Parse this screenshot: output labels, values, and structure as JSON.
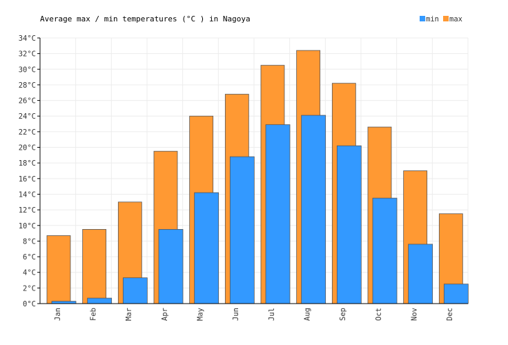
{
  "chart_data": {
    "type": "bar",
    "title": "Average max / min temperatures (°C ) in Nagoya",
    "categories": [
      "Jan",
      "Feb",
      "Mar",
      "Apr",
      "May",
      "Jun",
      "Jul",
      "Aug",
      "Sep",
      "Oct",
      "Nov",
      "Dec"
    ],
    "series": [
      {
        "name": "max",
        "color": "#ff9933",
        "values": [
          8.7,
          9.5,
          13.0,
          19.5,
          24.0,
          26.8,
          30.5,
          32.4,
          28.2,
          22.6,
          17.0,
          11.5
        ]
      },
      {
        "name": "min",
        "color": "#3399ff",
        "values": [
          0.3,
          0.7,
          3.3,
          9.5,
          14.2,
          18.8,
          22.9,
          24.1,
          20.2,
          13.5,
          7.6,
          2.5
        ]
      }
    ],
    "legend": [
      "min",
      "max"
    ],
    "legend_position": "top-right",
    "ylim": [
      0,
      34
    ],
    "y_step": 2,
    "y_unit": "°C",
    "xlabel": "",
    "ylabel": "",
    "grid": true
  }
}
